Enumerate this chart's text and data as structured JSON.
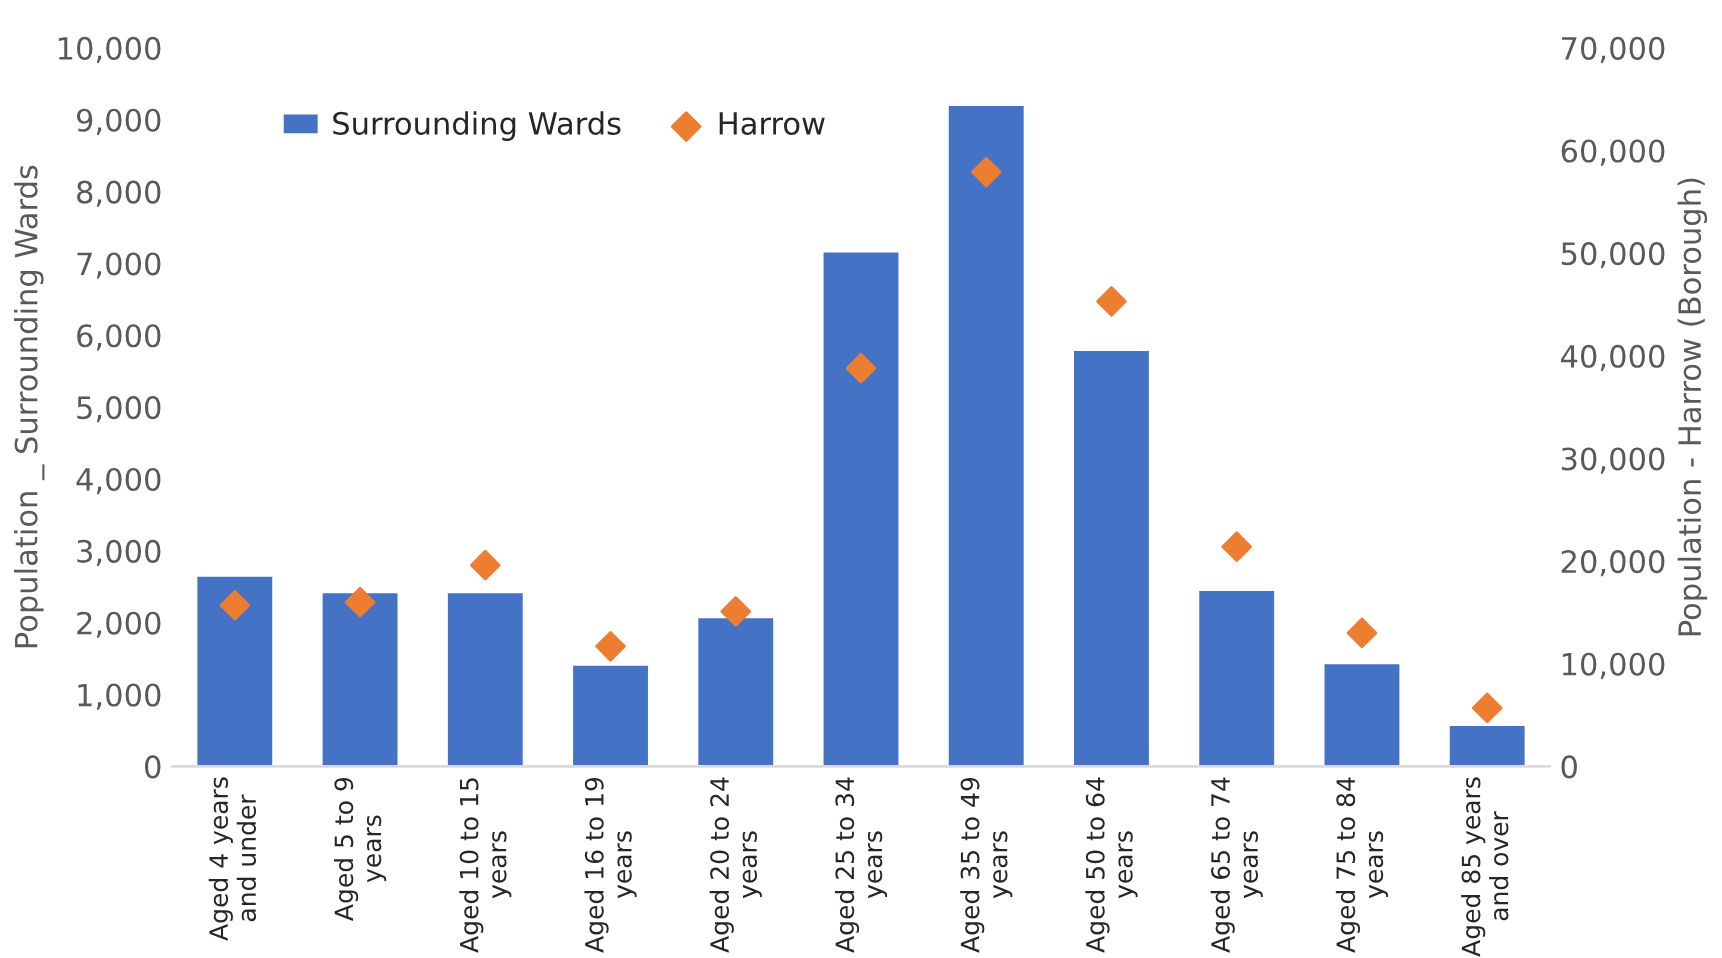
{
  "chart_data": {
    "type": "bar",
    "categories": [
      "Aged 4 years\nand under",
      "Aged 5 to 9\nyears",
      "Aged 10 to 15\nyears",
      "Aged 16 to 19\nyears",
      "Aged 20 to 24\nyears",
      "Aged 25 to 34\nyears",
      "Aged 35 to 49\nyears",
      "Aged 50 to 64\nyears",
      "Aged 65 to 74\nyears",
      "Aged 75 to 84\nyears",
      "Aged 85 years\nand over"
    ],
    "series": [
      {
        "name": "Surrounding Wards",
        "color": "#4472c4",
        "values": [
          2660,
          2430,
          2430,
          1420,
          2080,
          7170,
          9210,
          5800,
          2460,
          1440,
          580
        ]
      },
      {
        "name": "Harrow",
        "type": "scatter",
        "axis": "y2",
        "color": "#ed7d31",
        "marker": "diamond",
        "values": [
          15700,
          16000,
          19600,
          11700,
          15100,
          38800,
          57900,
          45300,
          21400,
          13000,
          5700
        ]
      }
    ],
    "ylabel": "Population _ Surrounding Wards",
    "y2label": "Population - Harrow (Borough)",
    "ylim": [
      0,
      10000
    ],
    "yticks": [
      {
        "value": 0,
        "label": "0"
      },
      {
        "value": 1000,
        "label": "1,000"
      },
      {
        "value": 2000,
        "label": "2,000"
      },
      {
        "value": 3000,
        "label": "3,000"
      },
      {
        "value": 4000,
        "label": "4,000"
      },
      {
        "value": 5000,
        "label": "5,000"
      },
      {
        "value": 6000,
        "label": "6,000"
      },
      {
        "value": 7000,
        "label": "7,000"
      },
      {
        "value": 8000,
        "label": "8,000"
      },
      {
        "value": 9000,
        "label": "9,000"
      },
      {
        "value": 10000,
        "label": "10,000"
      }
    ],
    "y2lim": [
      0,
      70000
    ],
    "y2ticks": [
      {
        "value": 0,
        "label": "0"
      },
      {
        "value": 10000,
        "label": "10,000"
      },
      {
        "value": 20000,
        "label": "20,000"
      },
      {
        "value": 30000,
        "label": "30,000"
      },
      {
        "value": 40000,
        "label": "40,000"
      },
      {
        "value": 50000,
        "label": "50,000"
      },
      {
        "value": 60000,
        "label": "60,000"
      },
      {
        "value": 70000,
        "label": "70,000"
      }
    ],
    "legend": "top left",
    "grid": false
  }
}
